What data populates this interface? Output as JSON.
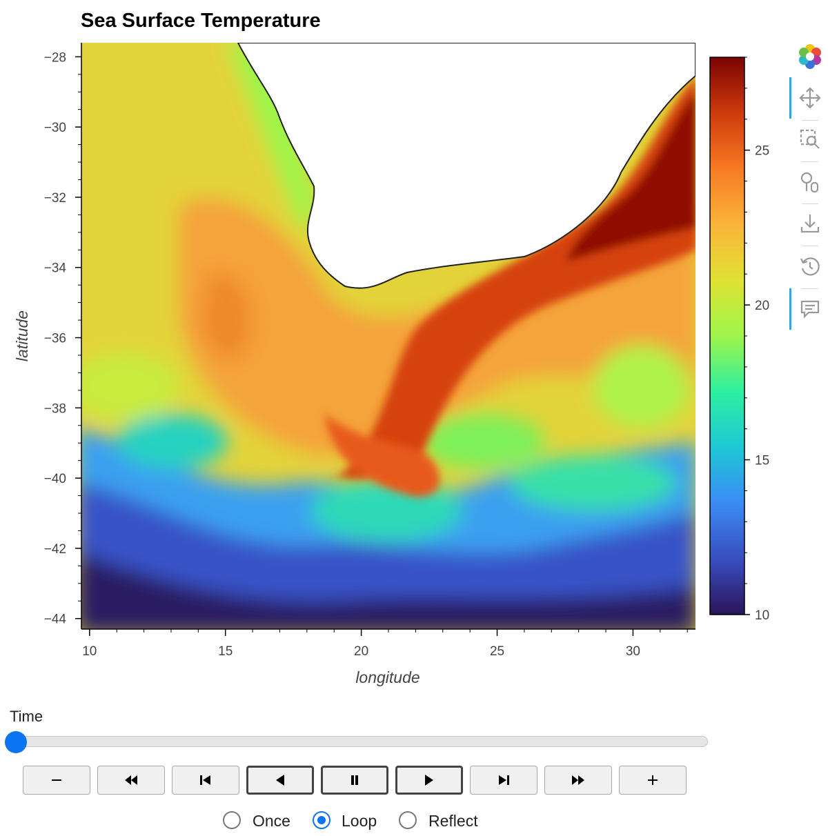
{
  "chart_data": {
    "type": "heatmap",
    "title": "Sea Surface Temperature",
    "xlabel": "longitude",
    "ylabel": "latitude",
    "xlim": [
      9.7,
      32.3
    ],
    "ylim": [
      -44.3,
      -27.6
    ],
    "x_ticks": [
      10,
      15,
      20,
      25,
      30
    ],
    "y_ticks": [
      -28,
      -30,
      -32,
      -34,
      -36,
      -38,
      -40,
      -42,
      -44
    ],
    "x_tick_labels": [
      "10",
      "15",
      "20",
      "25",
      "30"
    ],
    "y_tick_labels": [
      "−28",
      "−30",
      "−32",
      "−34",
      "−36",
      "−38",
      "−40",
      "−42",
      "−44"
    ],
    "colorbar": {
      "range": [
        10,
        28
      ],
      "ticks": [
        10,
        15,
        20,
        25
      ],
      "tick_labels": [
        "10",
        "15",
        "20",
        "25"
      ],
      "colormap": "turbo",
      "colors": [
        "#2a1559",
        "#3848b8",
        "#3b8bf5",
        "#1fc7d6",
        "#2df0a0",
        "#9ef54a",
        "#e0e234",
        "#fbb43a",
        "#f77a23",
        "#cf3a0c",
        "#8f1005",
        "#7a0403"
      ]
    },
    "land_color": "#ffffff",
    "coastline_color": "#222222"
  },
  "toolbar": {
    "logo": "bokeh-logo-icon",
    "tools": [
      "pan-icon",
      "box-zoom-icon",
      "wheel-zoom-icon",
      "save-icon",
      "reset-icon",
      "hover-icon"
    ],
    "accent": "#26aae1"
  },
  "player": {
    "label": "Time",
    "value_fraction": 0,
    "buttons": [
      "minus-icon",
      "first-icon",
      "step-back-icon",
      "play-reverse-icon",
      "pause-icon",
      "play-icon",
      "step-forward-icon",
      "last-icon",
      "plus-icon"
    ],
    "loop_options": [
      "Once",
      "Loop",
      "Reflect"
    ],
    "selected_option": "Loop",
    "accent": "#0b74f0"
  }
}
